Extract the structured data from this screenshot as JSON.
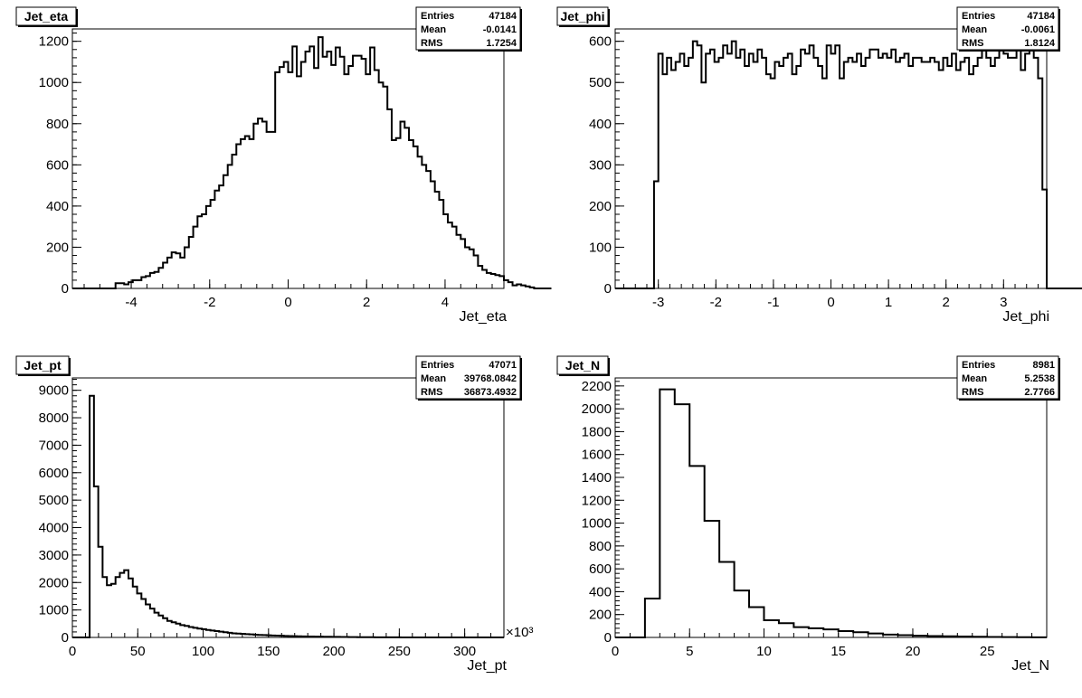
{
  "chart_data": [
    {
      "type": "histogram",
      "title": "Jet_eta",
      "xlabel": "Jet_eta",
      "xlim": [
        -5.5,
        5.5
      ],
      "ylim": [
        0,
        1260
      ],
      "xticks": [
        -4,
        -2,
        0,
        2,
        4
      ],
      "yticks": [
        0,
        200,
        400,
        600,
        800,
        1000,
        1200
      ],
      "stats": [
        {
          "label": "Entries",
          "value": "47184"
        },
        {
          "label": "Mean",
          "value": "-0.0141"
        },
        {
          "label": "RMS",
          "value": "1.7254"
        }
      ],
      "bins": {
        "x0": -5.5,
        "width": 0.11,
        "values": [
          0,
          0,
          0,
          0,
          0,
          0,
          0,
          0,
          0,
          0,
          25,
          25,
          20,
          30,
          40,
          40,
          55,
          60,
          75,
          80,
          100,
          125,
          150,
          175,
          170,
          150,
          200,
          250,
          300,
          350,
          360,
          400,
          430,
          475,
          500,
          550,
          600,
          650,
          700,
          725,
          740,
          725,
          800,
          825,
          810,
          760,
          760,
          1050,
          1075,
          1100,
          1050,
          1175,
          1030,
          1100,
          1150,
          1175,
          1070,
          1220,
          1125,
          1150,
          1085,
          1170,
          1125,
          1040,
          1080,
          1130,
          1130,
          1115,
          1040,
          1170,
          1060,
          1000,
          980,
          870,
          720,
          730,
          810,
          780,
          720,
          690,
          640,
          600,
          570,
          520,
          470,
          430,
          360,
          320,
          300,
          260,
          240,
          200,
          190,
          160,
          110,
          90,
          75,
          70,
          65,
          60,
          40,
          30,
          15,
          20,
          15,
          10,
          5,
          0,
          0,
          0,
          0
        ]
      }
    },
    {
      "type": "histogram",
      "title": "Jet_phi",
      "xlabel": "Jet_phi",
      "xlim": [
        -3.75,
        3.75
      ],
      "ylim": [
        0,
        630
      ],
      "xticks": [
        -3,
        -2,
        -1,
        0,
        1,
        2,
        3
      ],
      "yticks": [
        0,
        100,
        200,
        300,
        400,
        500,
        600
      ],
      "stats": [
        {
          "label": "Entries",
          "value": "47184"
        },
        {
          "label": "Mean",
          "value": "-0.0061"
        },
        {
          "label": "RMS",
          "value": "1.8124"
        }
      ],
      "bins": {
        "x0": -3.75,
        "width": 0.075,
        "values": [
          0,
          0,
          0,
          0,
          0,
          0,
          0,
          0,
          0,
          260,
          570,
          520,
          560,
          530,
          550,
          570,
          540,
          560,
          600,
          590,
          500,
          570,
          580,
          550,
          560,
          590,
          570,
          600,
          560,
          580,
          540,
          570,
          550,
          580,
          560,
          520,
          510,
          550,
          540,
          560,
          570,
          520,
          540,
          580,
          570,
          590,
          560,
          540,
          510,
          590,
          570,
          590,
          510,
          550,
          560,
          550,
          570,
          540,
          560,
          580,
          580,
          560,
          570,
          560,
          580,
          550,
          560,
          570,
          540,
          560,
          560,
          550,
          550,
          560,
          550,
          530,
          560,
          540,
          570,
          530,
          550,
          560,
          520,
          540,
          560,
          580,
          560,
          540,
          560,
          590,
          570,
          560,
          560,
          590,
          530,
          570,
          580,
          560,
          510,
          240,
          0,
          0,
          0,
          0,
          0,
          0,
          0,
          0,
          0,
          0
        ]
      }
    },
    {
      "type": "histogram",
      "title": "Jet_pt",
      "xlabel": "Jet_pt",
      "axis_multiplier": "×10³",
      "xlim": [
        0,
        330
      ],
      "ylim": [
        0,
        9450
      ],
      "xticks": [
        0,
        50,
        100,
        150,
        200,
        250,
        300
      ],
      "yticks": [
        0,
        1000,
        2000,
        3000,
        4000,
        5000,
        6000,
        7000,
        8000,
        9000
      ],
      "stats": [
        {
          "label": "Entries",
          "value": "47071"
        },
        {
          "label": "Mean",
          "value": "39768.0842"
        },
        {
          "label": "RMS",
          "value": "36873.4932"
        }
      ],
      "bins": {
        "x0": 0,
        "width": 3.3,
        "values": [
          0,
          0,
          0,
          0,
          8800,
          5500,
          3300,
          2200,
          1900,
          1950,
          2200,
          2350,
          2450,
          2150,
          1850,
          1600,
          1400,
          1200,
          1050,
          900,
          800,
          700,
          600,
          550,
          500,
          450,
          420,
          380,
          350,
          320,
          300,
          270,
          250,
          230,
          210,
          190,
          170,
          150,
          140,
          130,
          120,
          110,
          100,
          90,
          85,
          80,
          70,
          65,
          60,
          55,
          50,
          45,
          40,
          38,
          35,
          32,
          30,
          28,
          26,
          24,
          22,
          20,
          18,
          16,
          14,
          12,
          10,
          9,
          8,
          7,
          6,
          5,
          4,
          4,
          3,
          3,
          2,
          2,
          2,
          1,
          1,
          1,
          1,
          1,
          1,
          1,
          1,
          1,
          1,
          1,
          0,
          0,
          0,
          0,
          0,
          0,
          0,
          0,
          0,
          0
        ]
      }
    },
    {
      "type": "histogram",
      "title": "Jet_N",
      "xlabel": "Jet_N",
      "xlim": [
        0,
        29
      ],
      "ylim": [
        0,
        2270
      ],
      "xticks": [
        0,
        5,
        10,
        15,
        20,
        25
      ],
      "yticks": [
        0,
        200,
        400,
        600,
        800,
        1000,
        1200,
        1400,
        1600,
        1800,
        2000,
        2200
      ],
      "stats": [
        {
          "label": "Entries",
          "value": "8981"
        },
        {
          "label": "Mean",
          "value": "5.2538"
        },
        {
          "label": "RMS",
          "value": "2.7766"
        }
      ],
      "bins": {
        "x0": 0,
        "width": 1,
        "values": [
          0,
          0,
          340,
          2170,
          2040,
          1500,
          1020,
          660,
          410,
          265,
          150,
          125,
          90,
          80,
          70,
          55,
          45,
          35,
          25,
          20,
          15,
          12,
          10,
          8,
          6,
          4,
          3,
          2,
          1
        ]
      }
    }
  ]
}
